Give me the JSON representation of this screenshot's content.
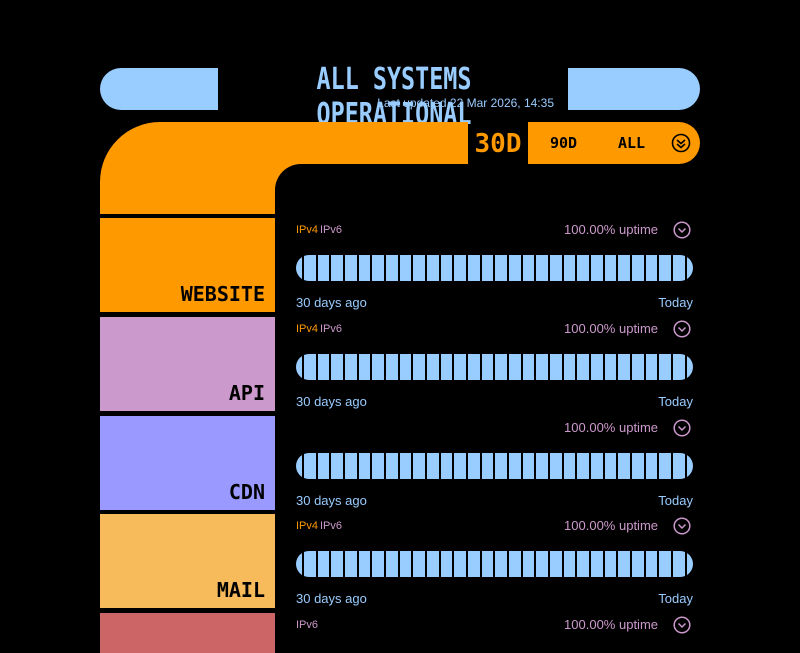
{
  "header": {
    "title": "ALL SYSTEMS OPERATIONAL",
    "last_updated": "Last updated 22 Mar 2026, 14:35"
  },
  "ranges": {
    "selected": "30D",
    "opt_90": "90D",
    "opt_all": "ALL"
  },
  "colors": {
    "accent_orange": "#ff9900",
    "light_blue": "#99ccff",
    "lilac": "#cc99cc",
    "periwinkle": "#9999ff",
    "sand": "#f7bb5b",
    "rust": "#cc6666"
  },
  "axis": {
    "start": "30 days ago",
    "end": "Today"
  },
  "services": [
    {
      "name": "WEBSITE",
      "ipv4": "IPv4",
      "ipv6": "IPv6",
      "uptime": "100.00% uptime",
      "uptime_value": 100.0
    },
    {
      "name": "API",
      "ipv4": "IPv4",
      "ipv6": "IPv6",
      "uptime": "100.00% uptime",
      "uptime_value": 100.0
    },
    {
      "name": "CDN",
      "ipv4": "",
      "ipv6": "",
      "uptime": "100.00% uptime",
      "uptime_value": 100.0
    },
    {
      "name": "MAIL",
      "ipv4": "IPv4",
      "ipv6": "IPv6",
      "uptime": "100.00% uptime",
      "uptime_value": 100.0
    },
    {
      "name": "",
      "ipv4": "",
      "ipv6": "IPv6",
      "uptime": "100.00% uptime",
      "uptime_value": 100.0
    }
  ]
}
